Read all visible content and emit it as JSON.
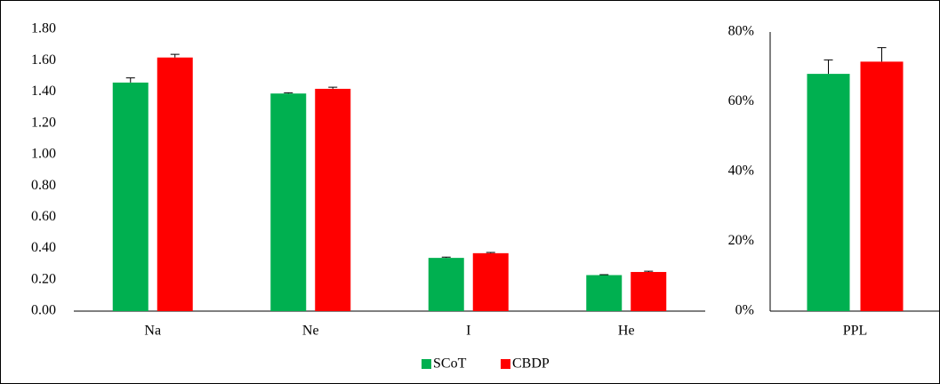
{
  "chart_data": [
    {
      "type": "bar",
      "categories": [
        "Na",
        "Ne",
        "I",
        "He"
      ],
      "series": [
        {
          "name": "SCoT",
          "color": "#00b050",
          "values": [
            1.46,
            1.39,
            0.34,
            0.23
          ],
          "errors": [
            0.03,
            0.005,
            0.005,
            0.003
          ]
        },
        {
          "name": "CBDP",
          "color": "#ff0000",
          "values": [
            1.62,
            1.42,
            0.37,
            0.25
          ],
          "errors": [
            0.02,
            0.01,
            0.005,
            0.005
          ]
        }
      ],
      "ylim": [
        0,
        1.8
      ],
      "yticks": [
        {
          "value": 0,
          "label": "0.00"
        },
        {
          "value": 0.2,
          "label": "0.20"
        },
        {
          "value": 0.4,
          "label": "0.40"
        },
        {
          "value": 0.6,
          "label": "0.60"
        },
        {
          "value": 0.8,
          "label": "0.80"
        },
        {
          "value": 1.0,
          "label": "1.00"
        },
        {
          "value": 1.2,
          "label": "1.20"
        },
        {
          "value": 1.4,
          "label": "1.40"
        },
        {
          "value": 1.6,
          "label": "1.60"
        },
        {
          "value": 1.8,
          "label": "1.80"
        }
      ],
      "legend": "bottom"
    },
    {
      "type": "bar",
      "categories": [
        "PPL"
      ],
      "series": [
        {
          "color": "#00b050",
          "values": [
            68
          ],
          "errors": [
            4
          ]
        },
        {
          "color": "#ff0000",
          "values": [
            71.5
          ],
          "errors": [
            4
          ]
        }
      ],
      "ylim": [
        0,
        80
      ],
      "yticks": [
        {
          "value": 0,
          "label": "0%"
        },
        {
          "value": 20,
          "label": "20%"
        },
        {
          "value": 40,
          "label": "40%"
        },
        {
          "value": 60,
          "label": "60%"
        },
        {
          "value": 80,
          "label": "80%"
        }
      ]
    }
  ]
}
